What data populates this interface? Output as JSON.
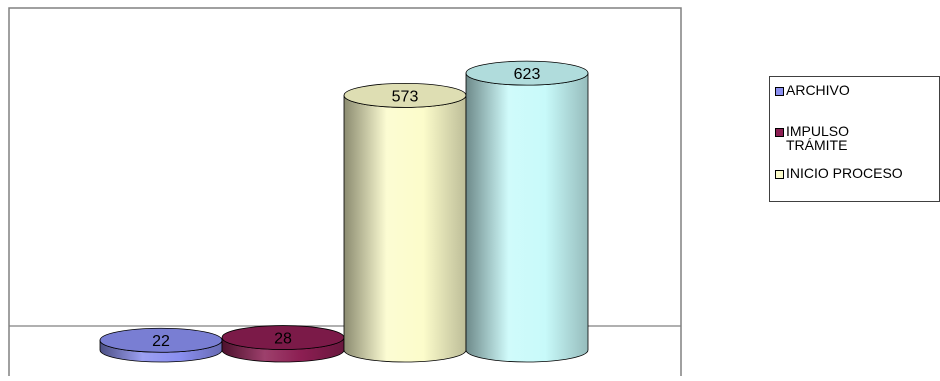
{
  "chart_data": {
    "type": "bar",
    "style": "3d-cylinder",
    "title": "",
    "xlabel": "",
    "ylabel": "",
    "grid": false,
    "legend_position": "right",
    "series": [
      {
        "name": "ARCHIVO",
        "value": 22,
        "label": "22",
        "color": "#8A8FF0"
      },
      {
        "name": "IMPULSO TRÁMITE",
        "value": 28,
        "label": "28",
        "color": "#8C1E52"
      },
      {
        "name": "INICIO PROCESO",
        "value": 573,
        "label": "573",
        "color": "#FCFCCB"
      },
      {
        "name": "",
        "value": 623,
        "label": "623",
        "color": "#C8FAFA"
      }
    ],
    "legend": [
      {
        "text": "ARCHIVO",
        "color": "#8A8FF0"
      },
      {
        "text": "IMPULSO\nTRÁMITE",
        "color": "#8C1E52"
      },
      {
        "text": "INICIO PROCESO",
        "color": "#FCFCCB"
      }
    ]
  }
}
